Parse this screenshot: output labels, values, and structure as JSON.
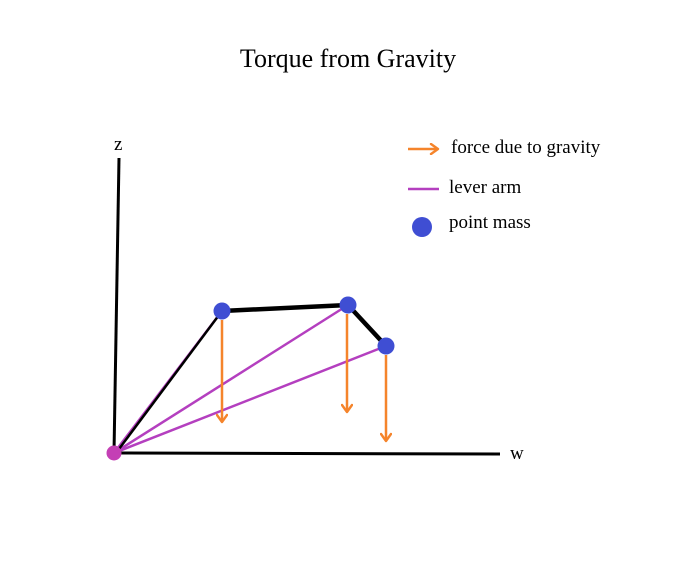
{
  "title": "Torque from Gravity",
  "axes": {
    "vertical_label": "z",
    "horizontal_label": "w"
  },
  "legend": {
    "force": "force due to gravity",
    "lever": "lever arm",
    "mass": "point mass"
  },
  "colors": {
    "force": "#f5842b",
    "lever": "#b43fbf",
    "mass": "#3f4ed3",
    "pivot": "#c43fb5",
    "axis": "#000000"
  }
}
